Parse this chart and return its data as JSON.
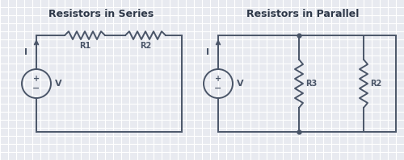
{
  "bg_color": "#e8eaf0",
  "grid_color": "#ffffff",
  "line_color": "#4a5568",
  "title_color": "#2d3748",
  "title1": "Resistors in Series",
  "title2": "Resistors in Parallel",
  "label_I": "I",
  "label_V": "V",
  "label_R1": "R1",
  "label_R2": "R2",
  "label_R3": "R3",
  "figsize": [
    5.0,
    1.99
  ],
  "dpi": 100
}
